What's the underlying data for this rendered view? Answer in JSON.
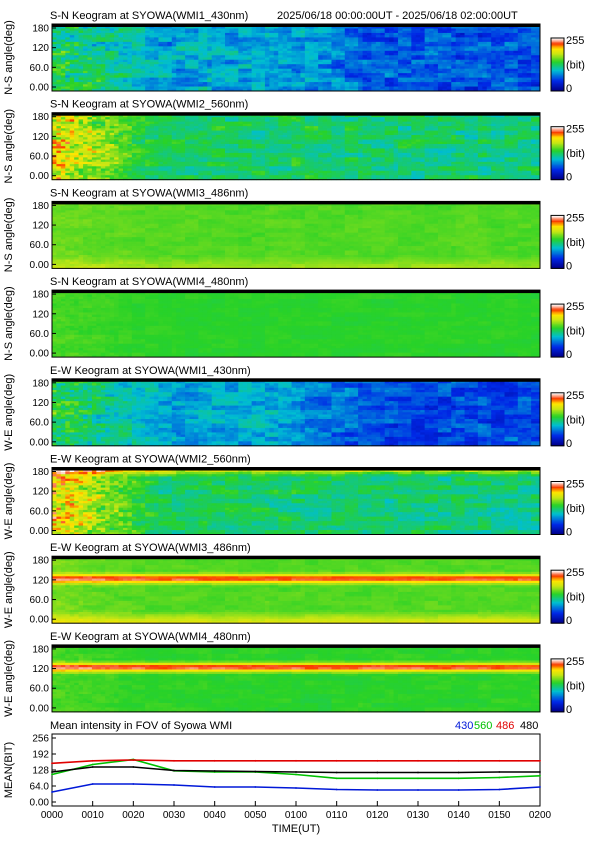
{
  "header": {
    "time_range": "2025/06/18 00:00:00UT - 2025/06/18 02:00:00UT"
  },
  "colorbar": {
    "max_label": "255",
    "unit_label": "(bit)",
    "min_label": "0"
  },
  "chart_data": [
    {
      "type": "heatmap",
      "title": "S-N Keogram at SYOWA(WMI1_430nm)",
      "ylabel": "N-S angle(deg)",
      "yticks": [
        "180",
        "120",
        "60.0",
        "0.00"
      ],
      "ylim": [
        0,
        180
      ],
      "clim": [
        0,
        255
      ],
      "base": 90,
      "variation": 35,
      "early_boost": 55,
      "late_drop": 30,
      "top_band": 0,
      "mid_band": 0,
      "low_band": 0
    },
    {
      "type": "heatmap",
      "title": "S-N Keogram at SYOWA(WMI2_560nm)",
      "ylabel": "N-S angle(deg)",
      "yticks": [
        "180",
        "120",
        "60.0",
        "0.00"
      ],
      "ylim": [
        0,
        180
      ],
      "clim": [
        0,
        255
      ],
      "base": 125,
      "variation": 30,
      "early_boost": 90,
      "late_drop": 5,
      "top_band": 0,
      "mid_band": 0,
      "low_band": 0
    },
    {
      "type": "heatmap",
      "title": "S-N Keogram at SYOWA(WMI3_486nm)",
      "ylabel": "N-S angle(deg)",
      "yticks": [
        "180",
        "120",
        "60.0",
        "0.00"
      ],
      "ylim": [
        0,
        180
      ],
      "clim": [
        0,
        255
      ],
      "base": 150,
      "variation": 8,
      "early_boost": 10,
      "late_drop": 0,
      "top_band": 0,
      "mid_band": 0,
      "low_band": 25
    },
    {
      "type": "heatmap",
      "title": "S-N Keogram at SYOWA(WMI4_480nm)",
      "ylabel": "N-S angle(deg)",
      "yticks": [
        "180",
        "120",
        "60.0",
        "0.00"
      ],
      "ylim": [
        0,
        180
      ],
      "clim": [
        0,
        255
      ],
      "base": 140,
      "variation": 6,
      "early_boost": 10,
      "late_drop": 0,
      "top_band": 0,
      "mid_band": 0,
      "low_band": 0
    },
    {
      "type": "heatmap",
      "title": "E-W Keogram at SYOWA(WMI1_430nm)",
      "ylabel": "W-E angle(deg)",
      "yticks": [
        "180",
        "120",
        "60.0",
        "0.00"
      ],
      "ylim": [
        0,
        180
      ],
      "clim": [
        0,
        255
      ],
      "base": 90,
      "variation": 30,
      "early_boost": 55,
      "late_drop": 35,
      "top_band": 0,
      "mid_band": 0,
      "low_band": 0
    },
    {
      "type": "heatmap",
      "title": "E-W Keogram at SYOWA(WMI2_560nm)",
      "ylabel": "W-E angle(deg)",
      "yticks": [
        "180",
        "120",
        "60.0",
        "0.00"
      ],
      "ylim": [
        0,
        180
      ],
      "clim": [
        0,
        255
      ],
      "base": 125,
      "variation": 28,
      "early_boost": 95,
      "late_drop": 5,
      "top_band": 80,
      "mid_band": 0,
      "low_band": 0
    },
    {
      "type": "heatmap",
      "title": "E-W Keogram at SYOWA(WMI3_486nm)",
      "ylabel": "W-E angle(deg)",
      "yticks": [
        "180",
        "120",
        "60.0",
        "0.00"
      ],
      "ylim": [
        0,
        180
      ],
      "clim": [
        0,
        255
      ],
      "base": 150,
      "variation": 8,
      "early_boost": 10,
      "late_drop": 0,
      "top_band": 0,
      "mid_band": 95,
      "low_band": 45
    },
    {
      "type": "heatmap",
      "title": "E-W Keogram at SYOWA(WMI4_480nm)",
      "ylabel": "W-E angle(deg)",
      "yticks": [
        "180",
        "120",
        "60.0",
        "0.00"
      ],
      "ylim": [
        0,
        180
      ],
      "clim": [
        0,
        255
      ],
      "base": 140,
      "variation": 8,
      "early_boost": 10,
      "late_drop": 0,
      "top_band": 0,
      "mid_band": 110,
      "low_band": 0
    },
    {
      "type": "line",
      "title": "Mean intensity in FOV of Syowa WMI",
      "xlabel": "TIME(UT)",
      "ylabel": "MEAN(BIT)",
      "x": [
        "0000",
        "0010",
        "0020",
        "0030",
        "0040",
        "0050",
        "0100",
        "0110",
        "0120",
        "0130",
        "0140",
        "0150",
        "0200"
      ],
      "ylim": [
        0,
        256
      ],
      "yticks": [
        "256",
        "192",
        "128",
        "64.0",
        "0.00"
      ],
      "series": [
        {
          "name": "430",
          "color": "#0018d8",
          "values": [
            40,
            72,
            72,
            68,
            60,
            60,
            56,
            50,
            48,
            48,
            48,
            50,
            60
          ]
        },
        {
          "name": "560",
          "color": "#00c000",
          "values": [
            110,
            150,
            170,
            125,
            120,
            120,
            110,
            95,
            95,
            95,
            95,
            98,
            105
          ]
        },
        {
          "name": "486",
          "color": "#e00000",
          "values": [
            155,
            165,
            168,
            165,
            165,
            165,
            165,
            165,
            165,
            165,
            165,
            165,
            165
          ]
        },
        {
          "name": "480",
          "color": "#000000",
          "values": [
            120,
            140,
            140,
            126,
            124,
            122,
            120,
            118,
            118,
            118,
            118,
            120,
            120
          ]
        }
      ]
    }
  ]
}
